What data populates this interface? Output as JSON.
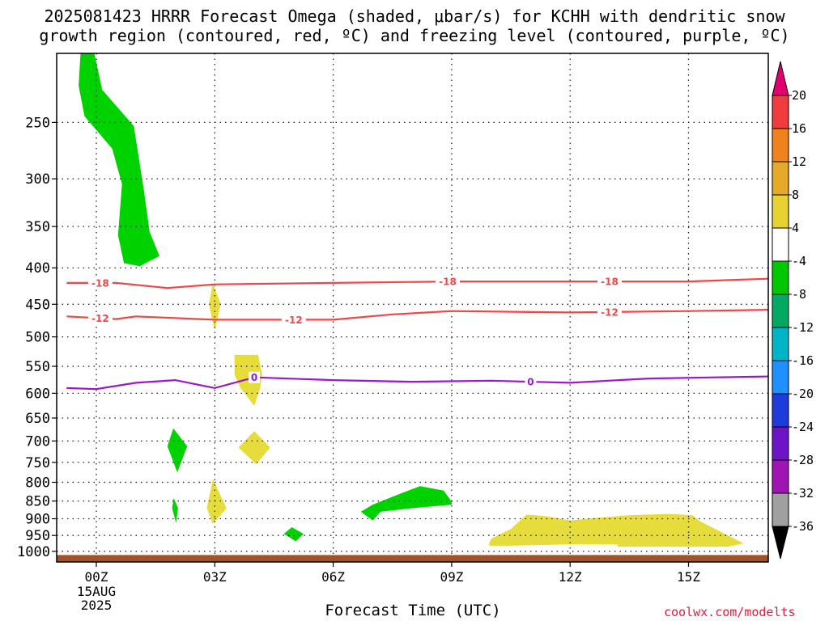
{
  "chart_data": {
    "type": "area",
    "title": "2025081423 HRRR Forecast Omega (shaded, μbar/s) for KCHH with dendritic snow",
    "subtitle": "growth region (contoured, red, ºC) and freezing level (contoured, purple, ºC)",
    "xlabel": "Forecast Time (UTC)",
    "ylabel": "",
    "x_range_hours": [
      -0.75,
      17.2
    ],
    "x_ticks": [
      {
        "hour": 0,
        "label": "00Z",
        "sub": [
          "15AUG",
          "2025"
        ]
      },
      {
        "hour": 3,
        "label": "03Z",
        "sub": []
      },
      {
        "hour": 6,
        "label": "06Z",
        "sub": []
      },
      {
        "hour": 9,
        "label": "09Z",
        "sub": []
      },
      {
        "hour": 12,
        "label": "12Z",
        "sub": []
      },
      {
        "hour": 15,
        "label": "15Z",
        "sub": []
      }
    ],
    "y_scale": "log-pressure",
    "y_range_hpa": [
      1035,
      200
    ],
    "y_ticks": [
      "250",
      "300",
      "350",
      "400",
      "450",
      "500",
      "550",
      "600",
      "650",
      "700",
      "750",
      "800",
      "850",
      "900",
      "950",
      "1000"
    ],
    "y_tick_values": [
      250,
      300,
      350,
      400,
      450,
      500,
      550,
      600,
      650,
      700,
      750,
      800,
      850,
      900,
      950,
      1000
    ],
    "grid": true,
    "colorbar": {
      "labels": [
        "20",
        "16",
        "12",
        "8",
        "4",
        "-4",
        "-8",
        "-12",
        "-16",
        "-20",
        "-24",
        "-28",
        "-32",
        "-36"
      ],
      "colors": [
        "#e0006e",
        "#f03c3c",
        "#f0821e",
        "#e6aa28",
        "#e6d232",
        "#ffffff",
        "#00c800",
        "#00aa64",
        "#00b4c8",
        "#1e90ff",
        "#1e3cdc",
        "#6e14c8",
        "#a014b4",
        "#a0a0a0",
        "#000000"
      ]
    },
    "contours": [
      {
        "label": "-18",
        "color": "#f04646",
        "points": [
          [
            -0.75,
            420
          ],
          [
            0.5,
            420
          ],
          [
            1.8,
            427
          ],
          [
            3.0,
            422
          ],
          [
            6.0,
            420
          ],
          [
            9.0,
            418
          ],
          [
            12.0,
            418
          ],
          [
            15.0,
            418
          ],
          [
            17.2,
            414
          ]
        ],
        "label_hours": [
          0.1,
          8.9,
          13.0
        ]
      },
      {
        "label": "-12",
        "color": "#f04646",
        "points": [
          [
            -0.75,
            468
          ],
          [
            0.5,
            472
          ],
          [
            1.0,
            468
          ],
          [
            3.0,
            473
          ],
          [
            6.0,
            473
          ],
          [
            7.5,
            465
          ],
          [
            9.0,
            460
          ],
          [
            12.0,
            462
          ],
          [
            15.0,
            460
          ],
          [
            17.2,
            458
          ]
        ],
        "label_hours": [
          0.1,
          5.0,
          13.0
        ]
      },
      {
        "label": "0",
        "color": "#9b18c8",
        "points": [
          [
            -0.75,
            590
          ],
          [
            0.0,
            592
          ],
          [
            1.0,
            580
          ],
          [
            2.0,
            575
          ],
          [
            3.0,
            590
          ],
          [
            4.0,
            570
          ],
          [
            6.0,
            575
          ],
          [
            8.0,
            578
          ],
          [
            10.0,
            576
          ],
          [
            12.0,
            580
          ],
          [
            14.0,
            572
          ],
          [
            17.2,
            568
          ]
        ],
        "label_hours": [
          4.0,
          11.0
        ]
      }
    ],
    "shaded_regions": [
      {
        "value": -6,
        "color": "#00d200",
        "points": [
          [
            -0.4,
            200
          ],
          [
            -0.05,
            200
          ],
          [
            0.15,
            225
          ],
          [
            0.95,
            253
          ],
          [
            1.2,
            310
          ],
          [
            1.35,
            356
          ],
          [
            1.6,
            385
          ],
          [
            1.1,
            398
          ],
          [
            0.7,
            394
          ],
          [
            0.55,
            360
          ],
          [
            0.65,
            305
          ],
          [
            0.4,
            272
          ],
          [
            -0.3,
            245
          ],
          [
            -0.45,
            222
          ]
        ]
      },
      {
        "value": -6,
        "color": "#00d200",
        "points": [
          [
            1.95,
            672
          ],
          [
            2.3,
            712
          ],
          [
            2.05,
            775
          ],
          [
            1.8,
            712
          ]
        ]
      },
      {
        "value": -6,
        "color": "#00d200",
        "points": [
          [
            1.96,
            842
          ],
          [
            2.07,
            870
          ],
          [
            2.02,
            913
          ],
          [
            1.92,
            870
          ]
        ]
      },
      {
        "value": -6,
        "color": "#00d200",
        "points": [
          [
            4.95,
            925
          ],
          [
            5.25,
            945
          ],
          [
            5.05,
            968
          ],
          [
            4.75,
            945
          ]
        ]
      },
      {
        "value": -6,
        "color": "#00d200",
        "points": [
          [
            6.7,
            880
          ],
          [
            7.0,
            860
          ],
          [
            7.7,
            830
          ],
          [
            8.2,
            810
          ],
          [
            8.8,
            822
          ],
          [
            9.0,
            852
          ],
          [
            9.0,
            860
          ],
          [
            8.0,
            870
          ],
          [
            7.2,
            880
          ],
          [
            7.0,
            905
          ]
        ]
      },
      {
        "value": 5,
        "color": "#e6dc3c",
        "points": [
          [
            2.95,
            420
          ],
          [
            3.15,
            450
          ],
          [
            3.0,
            490
          ],
          [
            2.85,
            450
          ]
        ]
      },
      {
        "value": 5,
        "color": "#e6dc3c",
        "points": [
          [
            3.5,
            530
          ],
          [
            4.1,
            530
          ],
          [
            4.2,
            565
          ],
          [
            4.15,
            590
          ],
          [
            4.0,
            625
          ],
          [
            3.65,
            590
          ],
          [
            3.5,
            565
          ]
        ]
      },
      {
        "value": 5,
        "color": "#e6dc3c",
        "points": [
          [
            4.0,
            678
          ],
          [
            4.4,
            715
          ],
          [
            4.05,
            755
          ],
          [
            3.6,
            715
          ]
        ]
      },
      {
        "value": 5,
        "color": "#e6dc3c",
        "points": [
          [
            2.95,
            792
          ],
          [
            3.3,
            870
          ],
          [
            2.95,
            915
          ],
          [
            2.8,
            870
          ]
        ]
      },
      {
        "value": 5,
        "color": "#e6dc3c",
        "points": [
          [
            9.95,
            975
          ],
          [
            10.0,
            960
          ],
          [
            10.5,
            930
          ],
          [
            10.9,
            888
          ],
          [
            11.4,
            893
          ],
          [
            12.0,
            905
          ],
          [
            12.6,
            898
          ],
          [
            13.5,
            890
          ],
          [
            14.5,
            886
          ],
          [
            15.1,
            890
          ],
          [
            15.3,
            908
          ],
          [
            16.4,
            975
          ],
          [
            16.0,
            985
          ],
          [
            13.2,
            985
          ],
          [
            13.2,
            978
          ],
          [
            12.0,
            978
          ],
          [
            10.4,
            982
          ],
          [
            9.95,
            982
          ]
        ]
      }
    ],
    "ground": {
      "color": "#a0522d",
      "hpa_top": 1012
    },
    "credit": "coolwx.com/modelts"
  }
}
